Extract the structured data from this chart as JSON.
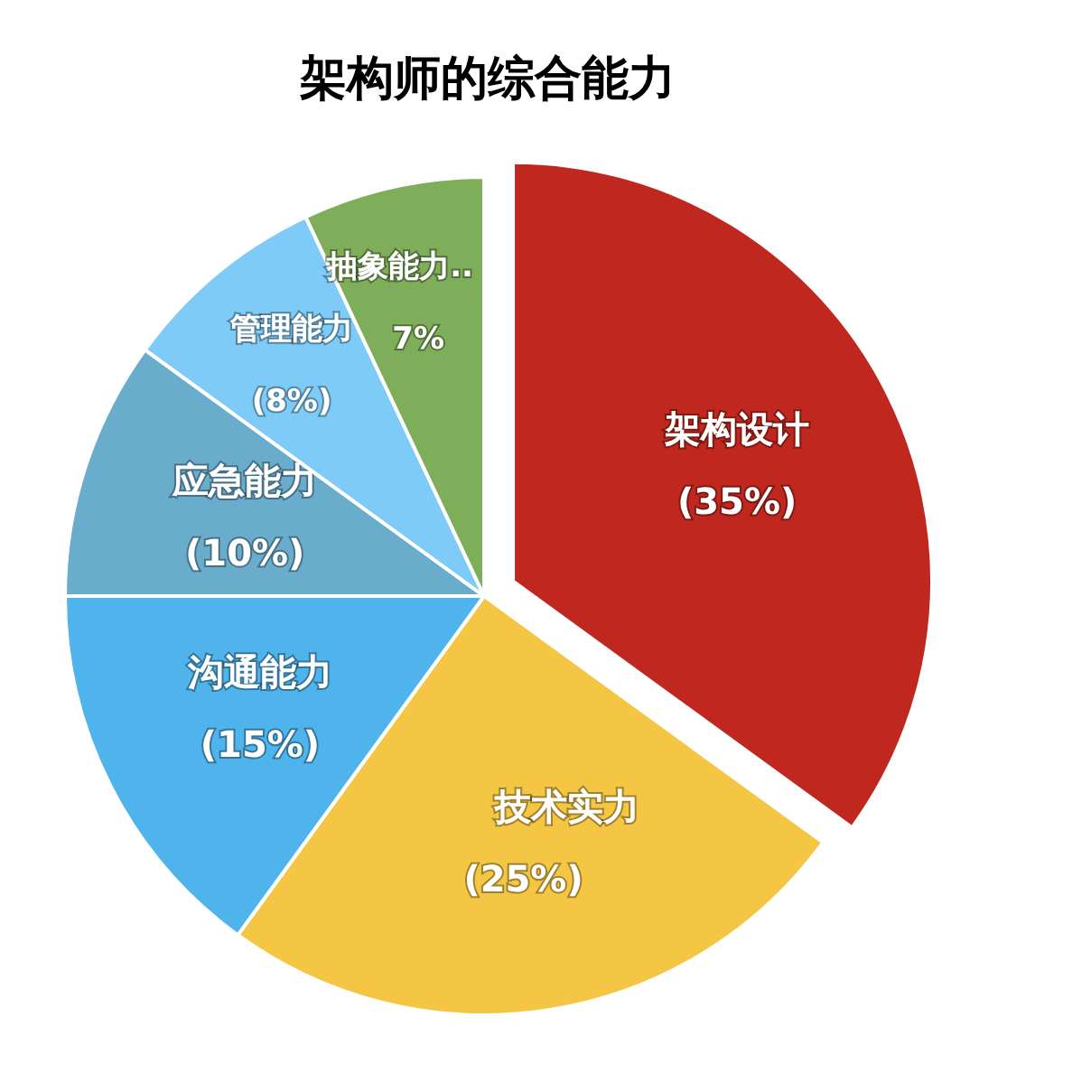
{
  "chart_data": {
    "type": "pie",
    "title": "架构师的综合能力",
    "categories": [
      "架构设计",
      "技术实力",
      "沟通能力",
      "应急能力",
      "管理能力",
      "抽象能力.."
    ],
    "values": [
      35,
      25,
      15,
      10,
      8,
      7
    ],
    "value_labels": [
      "(35%)",
      "(25%)",
      "(15%)",
      "(10%)",
      "(8%)",
      "7%"
    ],
    "colors": [
      "#c0271e",
      "#f5c644",
      "#4fb3ec",
      "#6aaccc",
      "#7fcbf7",
      "#7fae5a"
    ]
  }
}
